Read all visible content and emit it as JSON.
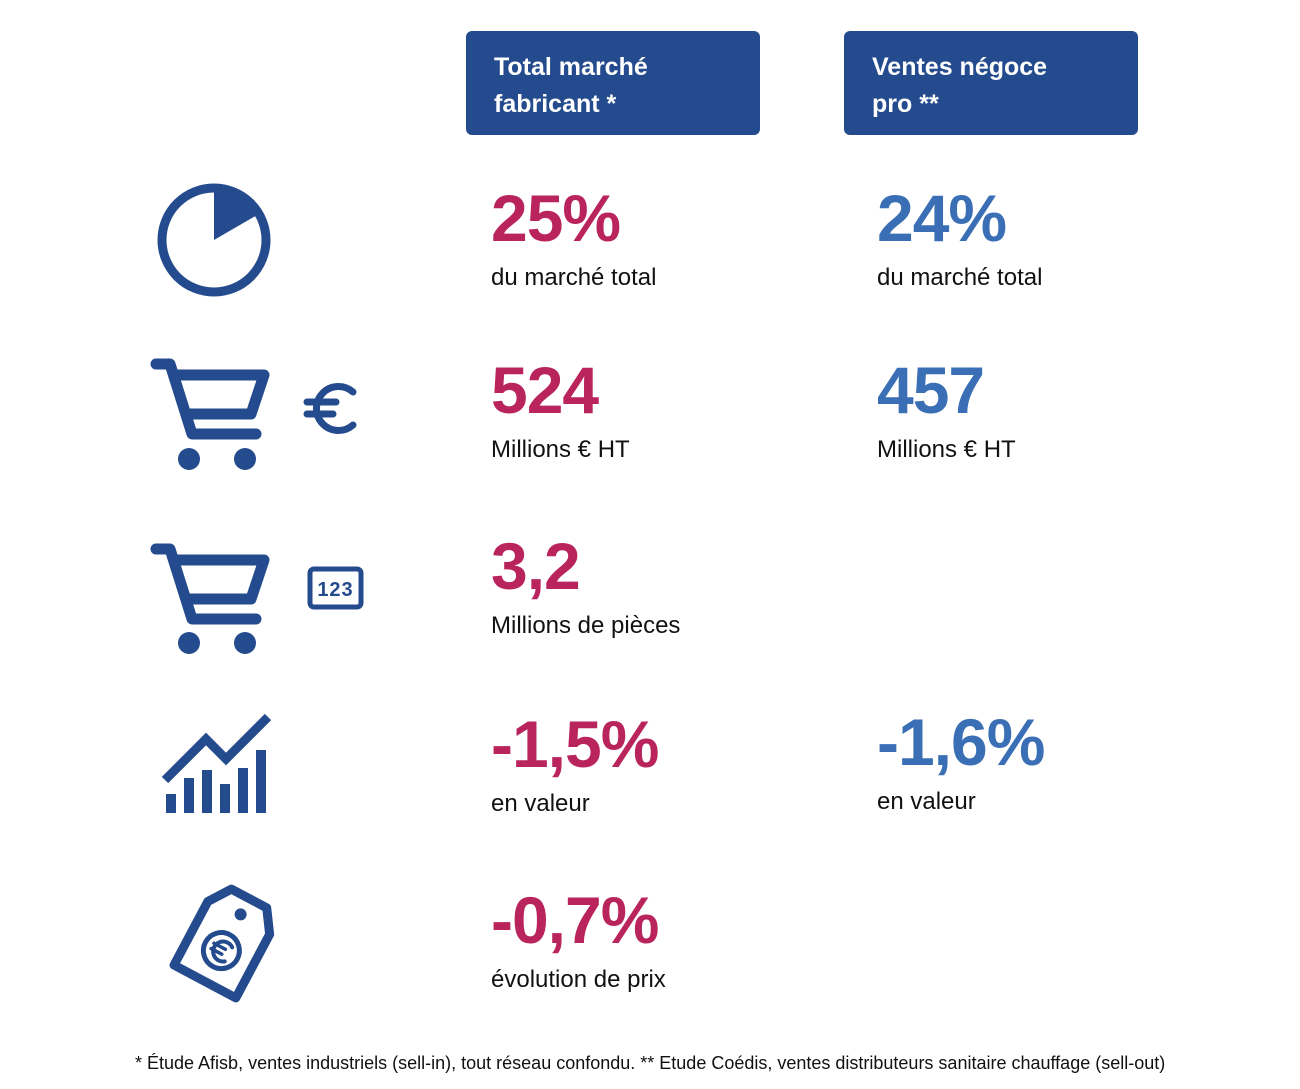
{
  "colors": {
    "header_bg": "#244b8d",
    "icon": "#244b8d",
    "col1_value": "#b9245c",
    "col2_value": "#3a6fb5"
  },
  "headers": {
    "left": "Total marché\nfabricant *",
    "right": "Ventes négoce\npro **"
  },
  "rows": [
    {
      "icon": "pie-chart-icon",
      "col1": {
        "value": "25%",
        "label": "du marché total"
      },
      "col2": {
        "value": "24%",
        "label": "du marché total"
      }
    },
    {
      "icon": "shopping-cart-euro-icon",
      "col1": {
        "value": "524",
        "label": "Millions € HT"
      },
      "col2": {
        "value": "457",
        "label": "Millions € HT"
      }
    },
    {
      "icon": "shopping-cart-quantity-icon",
      "icon_text": "123",
      "col1": {
        "value": "3,2",
        "label": "Millions de pièces"
      }
    },
    {
      "icon": "trend-chart-icon",
      "col1": {
        "value": "-1,5%",
        "label": "en valeur"
      },
      "col2": {
        "value": "-1,6%",
        "label": "en valeur"
      }
    },
    {
      "icon": "price-tag-euro-icon",
      "col1": {
        "value": "-0,7%",
        "label": "évolution de prix"
      }
    }
  ],
  "footnote": "* Étude Afisb, ventes industriels (sell-in), tout réseau confondu. ** Etude Coédis, ventes distributeurs sanitaire chauffage (sell-out)"
}
